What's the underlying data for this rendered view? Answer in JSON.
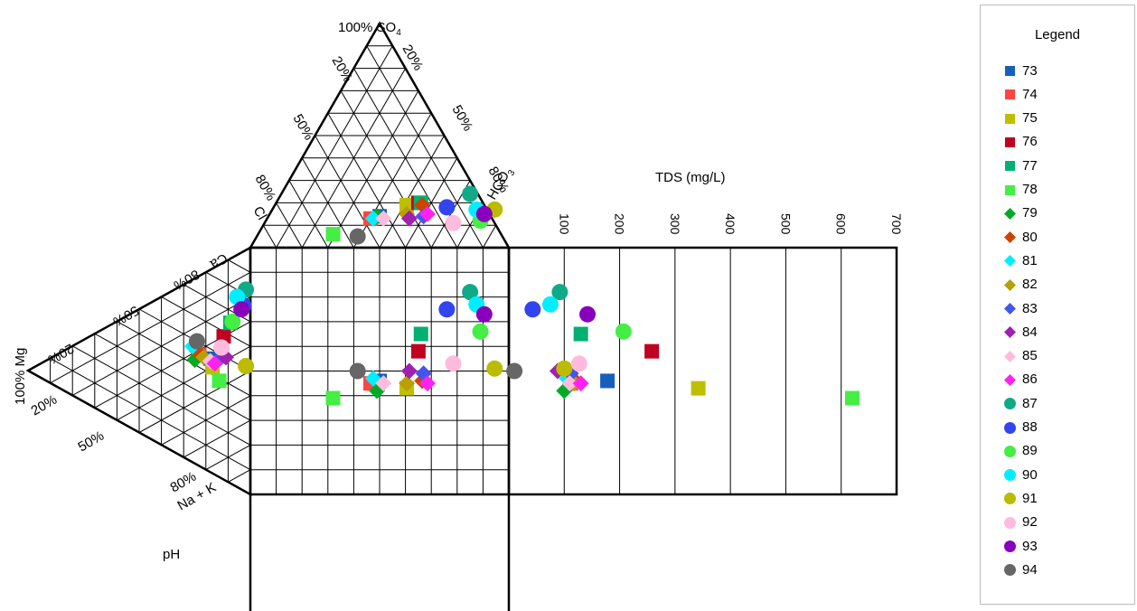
{
  "chart_data": {
    "type": "scatter",
    "subtype": "durov-diagram",
    "labels": {
      "so4": "100% SO",
      "so4_sub": "4",
      "hco3": "HCO",
      "hco3_sub": "3",
      "cl": "Cl",
      "ca": "Ca",
      "mg": "100% Mg",
      "nak": "Na + K",
      "tds": "TDS (mg/L)",
      "ph": "pH",
      "pct20": "20%",
      "pct50": "50%",
      "pct80": "80%"
    },
    "tds_axis": {
      "ticks": [
        "100",
        "200",
        "300",
        "400",
        "500",
        "600",
        "700"
      ],
      "range": [
        0,
        700
      ]
    },
    "legend": {
      "title": "Legend"
    },
    "series": [
      {
        "name": "73",
        "color": "#1560BD",
        "shape": "square",
        "anion": [
          14,
          43,
          43
        ],
        "cation": [
          46,
          36,
          18
        ],
        "tds": 178
      },
      {
        "name": "74",
        "color": "#FF4444",
        "shape": "square",
        "anion": [
          13,
          40,
          47
        ],
        "cation": [
          45,
          32,
          23
        ],
        "tds": 112
      },
      {
        "name": "75",
        "color": "#BFBF00",
        "shape": "square",
        "anion": [
          19,
          51,
          30
        ],
        "cation": [
          43,
          40,
          17
        ],
        "tds": 342
      },
      {
        "name": "76",
        "color": "#C00020",
        "shape": "square",
        "anion": [
          20,
          55,
          25
        ],
        "cation": [
          58,
          30,
          12
        ],
        "tds": 258
      },
      {
        "name": "77",
        "color": "#00B070",
        "shape": "square",
        "anion": [
          20,
          56,
          24
        ],
        "cation": [
          65,
          26,
          9
        ],
        "tds": 130
      },
      {
        "name": "78",
        "color": "#44EE44",
        "shape": "square",
        "anion": [
          6,
          29,
          65
        ],
        "cation": [
          39,
          47,
          14
        ],
        "tds": 620
      },
      {
        "name": "79",
        "color": "#00AA22",
        "shape": "diamond",
        "anion": [
          14,
          42,
          44
        ],
        "cation": [
          42,
          33,
          25
        ],
        "tds": 100
      },
      {
        "name": "80",
        "color": "#CC4400",
        "shape": "diamond",
        "anion": [
          19,
          57,
          24
        ],
        "cation": [
          46,
          30,
          24
        ],
        "tds": 120
      },
      {
        "name": "81",
        "color": "#00EEFF",
        "shape": "diamond",
        "anion": [
          13,
          41,
          46
        ],
        "cation": [
          47,
          27,
          26
        ],
        "tds": 105
      },
      {
        "name": "82",
        "color": "#B8A000",
        "shape": "diamond",
        "anion": [
          15,
          53,
          32
        ],
        "cation": [
          45,
          34,
          21
        ],
        "tds": 118
      },
      {
        "name": "83",
        "color": "#4455EE",
        "shape": "diamond",
        "anion": [
          14,
          60,
          26
        ],
        "cation": [
          49,
          38,
          13
        ],
        "tds": 112
      },
      {
        "name": "84",
        "color": "#A020B0",
        "shape": "diamond",
        "anion": [
          13,
          55,
          32
        ],
        "cation": [
          50,
          39,
          11
        ],
        "tds": 88
      },
      {
        "name": "85",
        "color": "#FFBBDD",
        "shape": "diamond",
        "anion": [
          13,
          45,
          42
        ],
        "cation": [
          45,
          37,
          18
        ],
        "tds": 110
      },
      {
        "name": "86",
        "color": "#FF22EE",
        "shape": "diamond",
        "anion": [
          15,
          61,
          24
        ],
        "cation": [
          45,
          39,
          16
        ],
        "tds": 130
      },
      {
        "name": "87",
        "color": "#11AA88",
        "shape": "circle",
        "anion": [
          24,
          73,
          3
        ],
        "cation": [
          82,
          16,
          2
        ],
        "tds": 92
      },
      {
        "name": "88",
        "color": "#3344EE",
        "shape": "circle",
        "anion": [
          18,
          67,
          15
        ],
        "cation": [
          75,
          22,
          3
        ],
        "tds": 43
      },
      {
        "name": "89",
        "color": "#44EE44",
        "shape": "circle",
        "anion": [
          12,
          83,
          5
        ],
        "cation": [
          66,
          26,
          8
        ],
        "tds": 207
      },
      {
        "name": "90",
        "color": "#00EEFF",
        "shape": "circle",
        "anion": [
          17,
          79,
          4
        ],
        "cation": [
          77,
          17,
          6
        ],
        "tds": 75
      },
      {
        "name": "91",
        "color": "#BBBB00",
        "shape": "circle",
        "anion": [
          17,
          86,
          -3
        ],
        "cation": [
          51,
          47,
          2
        ],
        "tds": 100
      },
      {
        "name": "92",
        "color": "#FFBBDD",
        "shape": "circle",
        "anion": [
          11,
          73,
          16
        ],
        "cation": [
          53,
          34,
          13
        ],
        "tds": 127
      },
      {
        "name": "93",
        "color": "#8800BB",
        "shape": "circle",
        "anion": [
          15,
          83,
          2
        ],
        "cation": [
          73,
          23,
          4
        ],
        "tds": 142
      },
      {
        "name": "94",
        "color": "#666666",
        "shape": "circle",
        "anion": [
          5,
          39,
          56
        ],
        "cation": [
          50,
          26,
          24
        ],
        "tds": 10
      }
    ]
  }
}
